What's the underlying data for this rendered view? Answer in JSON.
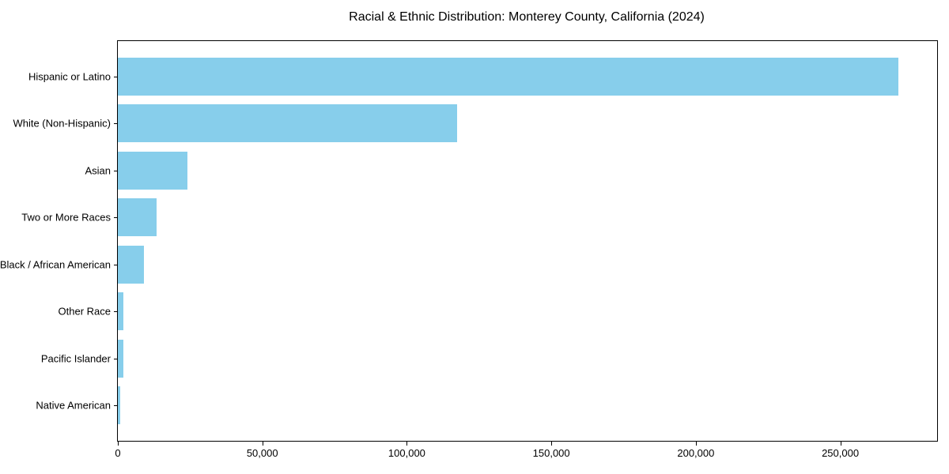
{
  "chart_data": {
    "type": "bar",
    "orientation": "horizontal",
    "title": "Racial & Ethnic Distribution: Monterey County, California (2024)",
    "categories": [
      "Hispanic or Latino",
      "White (Non-Hispanic)",
      "Asian",
      "Two or More Races",
      "Black / African American",
      "Other Race",
      "Pacific Islander",
      "Native American"
    ],
    "values": [
      270000,
      117500,
      24200,
      13300,
      8900,
      1900,
      2000,
      900
    ],
    "bar_color": "#87CEEB",
    "xlabel": "",
    "ylabel": "",
    "xlim": [
      0,
      283500
    ],
    "xticks": [
      {
        "value": 0,
        "label": "0"
      },
      {
        "value": 50000,
        "label": "50,000"
      },
      {
        "value": 100000,
        "label": "100,000"
      },
      {
        "value": 150000,
        "label": "150,000"
      },
      {
        "value": 200000,
        "label": "200,000"
      },
      {
        "value": 250000,
        "label": "250,000"
      }
    ],
    "grid": false,
    "legend": null,
    "plot_border_color": "#000000",
    "background_color": "#ffffff"
  }
}
